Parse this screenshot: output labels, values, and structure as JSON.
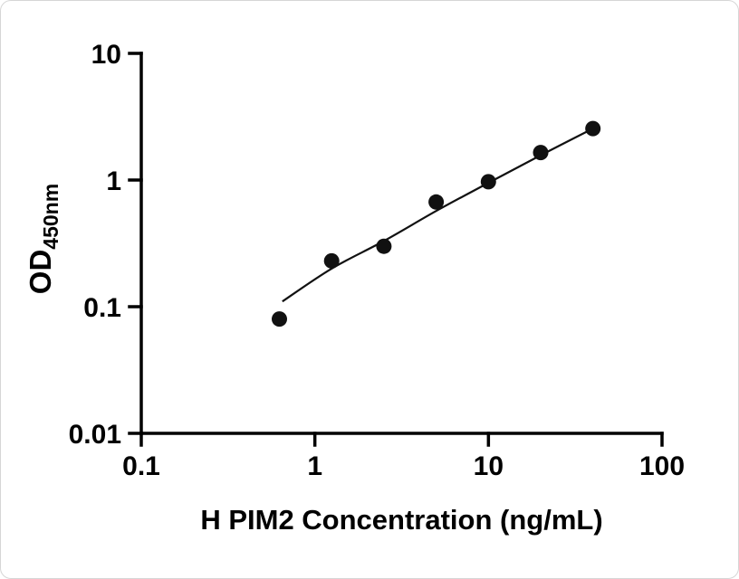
{
  "chart_data": {
    "type": "scatter",
    "title": "",
    "xlabel": "H PIM2 Concentration (ng/mL)",
    "ylabel": "OD",
    "ylabel_subscript": "450nm",
    "x_scale": "log10",
    "y_scale": "log10",
    "xlim": [
      0.1,
      100
    ],
    "ylim": [
      0.01,
      10
    ],
    "x_ticks": [
      0.1,
      1,
      10,
      100
    ],
    "x_tick_labels": [
      "0.1",
      "1",
      "10",
      "100"
    ],
    "y_ticks": [
      0.01,
      0.1,
      1,
      10
    ],
    "y_tick_labels": [
      "0.01",
      "0.1",
      "1",
      "10"
    ],
    "grid": false,
    "legend": null,
    "marker": "circle",
    "marker_color": "#111111",
    "line_color": "#111111",
    "axis_color": "#000000",
    "points": [
      {
        "x": 0.625,
        "y": 0.08
      },
      {
        "x": 1.25,
        "y": 0.23
      },
      {
        "x": 2.5,
        "y": 0.3
      },
      {
        "x": 5,
        "y": 0.67
      },
      {
        "x": 10,
        "y": 0.97
      },
      {
        "x": 20,
        "y": 1.65
      },
      {
        "x": 40,
        "y": 2.55
      }
    ],
    "fit_curve": [
      [
        0.65,
        0.11
      ],
      [
        1.25,
        0.2
      ],
      [
        2.5,
        0.33
      ],
      [
        5,
        0.57
      ],
      [
        10,
        0.95
      ],
      [
        20,
        1.57
      ],
      [
        40,
        2.55
      ]
    ]
  }
}
